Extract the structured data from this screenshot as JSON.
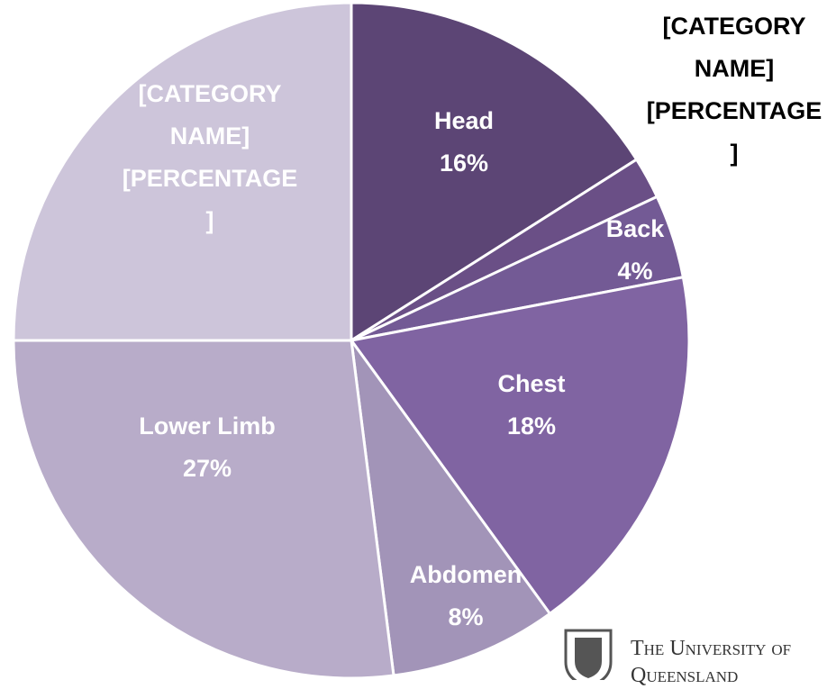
{
  "chart_data": {
    "type": "pie",
    "categories": [
      "Head",
      "[CATEGORY NAME]",
      "Back",
      "Chest",
      "Abdomen",
      "Lower Limb",
      "[CATEGORY NAME]"
    ],
    "values": [
      16,
      2,
      4,
      18,
      8,
      27,
      25
    ],
    "value_labels": [
      "16%",
      "[PERCENTAGE]",
      "4%",
      "18%",
      "8%",
      "27%",
      "[PERCENTAGE]"
    ],
    "colors": [
      "#5c4575",
      "#6a4f86",
      "#735a95",
      "#8064a2",
      "#a294b8",
      "#b8acc9",
      "#cdc5da"
    ]
  },
  "logo": "The University of Queensland"
}
